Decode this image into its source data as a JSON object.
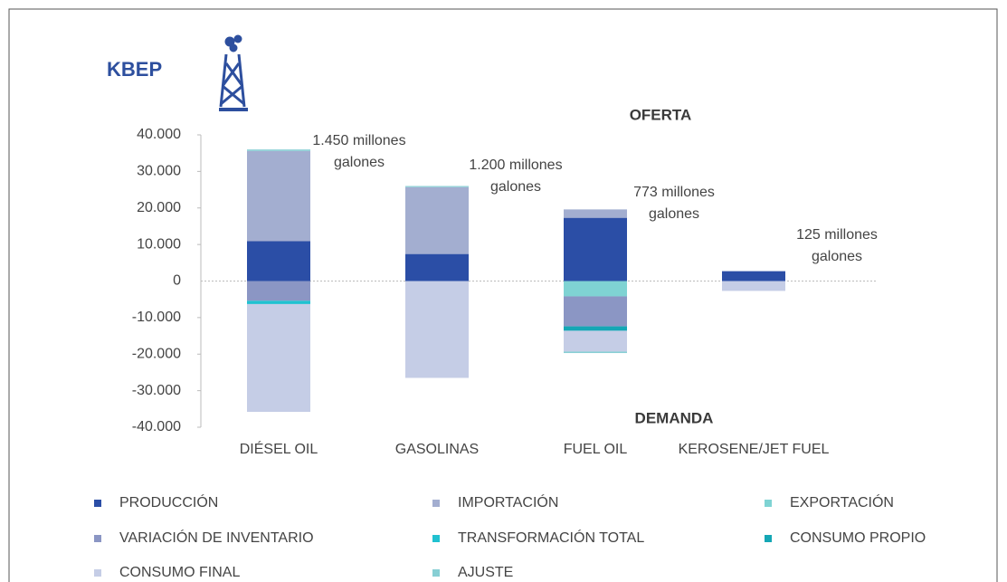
{
  "chart_data": {
    "type": "stacked_bar",
    "ylabel": "KBEP",
    "annotations": [
      "OFERTA",
      "DEMANDA"
    ],
    "bar_labels": [
      [
        "1.450 millones",
        "galones"
      ],
      [
        "1.200 millones",
        "galones"
      ],
      [
        "773 millones",
        "galones"
      ],
      [
        "125 millones",
        "galones"
      ]
    ],
    "categories": [
      "DIÉSEL OIL",
      "GASOLINAS",
      "FUEL OIL",
      "KEROSENE/JET FUEL"
    ],
    "series": [
      {
        "name": "PRODUCCIÓN",
        "color": "#2b4ea6",
        "values": [
          10900,
          7400,
          17300,
          2700
        ]
      },
      {
        "name": "IMPORTACIÓN",
        "color": "#a3aed0",
        "values": [
          24700,
          18300,
          2300,
          0
        ]
      },
      {
        "name": "EXPORTACIÓN",
        "color": "#7fd3d3",
        "values": [
          0,
          0,
          -4200,
          0
        ]
      },
      {
        "name": "VARIACIÓN DE INVENTARIO",
        "color": "#8b96c4",
        "values": [
          -5400,
          0,
          -8200,
          0
        ]
      },
      {
        "name": "TRANSFORMACIÓN TOTAL",
        "color": "#20c1d0",
        "values": [
          -900,
          0,
          0,
          0
        ]
      },
      {
        "name": "CONSUMO PROPIO",
        "color": "#14a7b5",
        "values": [
          0,
          0,
          -1200,
          0
        ]
      },
      {
        "name": "CONSUMO FINAL",
        "color": "#c5cde6",
        "values": [
          -29500,
          -26500,
          -5700,
          -2700
        ]
      },
      {
        "name": "AJUSTE",
        "color": "#87cfd4",
        "values": [
          400,
          300,
          -400,
          0
        ]
      }
    ],
    "ylim": [
      -40000,
      40000
    ],
    "yticks": [
      {
        "value": 40000,
        "label": "40.000"
      },
      {
        "value": 30000,
        "label": "30.000"
      },
      {
        "value": 20000,
        "label": "20.000"
      },
      {
        "value": 10000,
        "label": "10.000"
      },
      0,
      {
        "value": -10000,
        "label": "-10.000"
      },
      {
        "value": -20000,
        "label": "-20.000"
      },
      {
        "value": -30000,
        "label": "-30.000"
      },
      {
        "value": -40000,
        "label": "-40.000"
      }
    ]
  }
}
